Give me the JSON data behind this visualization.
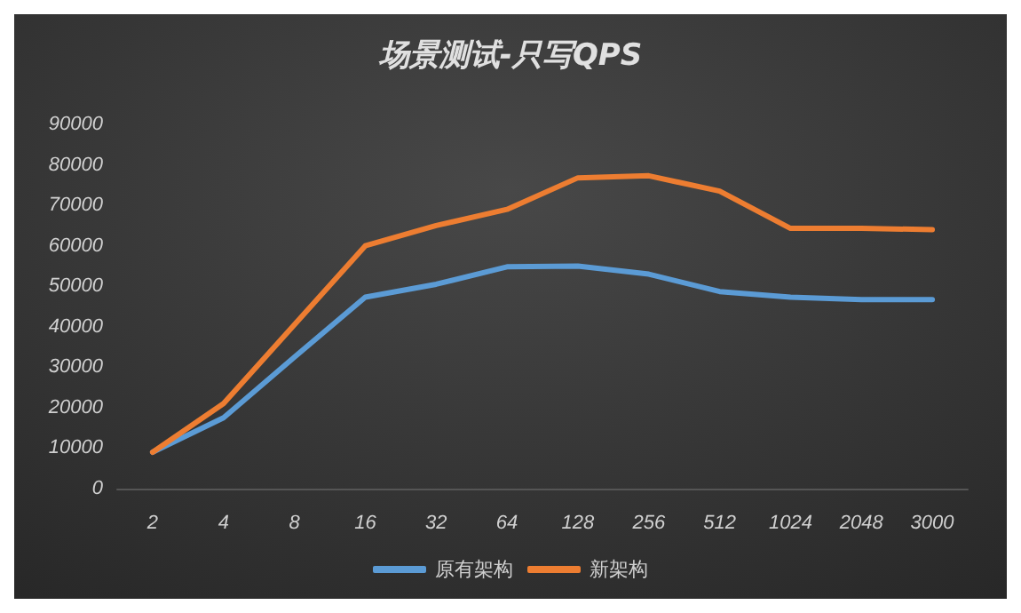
{
  "chart_data": {
    "type": "line",
    "title": "场景测试-只写QPS",
    "categories": [
      "2",
      "4",
      "8",
      "16",
      "32",
      "64",
      "128",
      "256",
      "512",
      "1024",
      "2048",
      "3000"
    ],
    "series": [
      {
        "name": "原有架构",
        "color": "#5b9bd5",
        "values": [
          9000,
          17500,
          32500,
          47300,
          50500,
          54800,
          55000,
          53000,
          48700,
          47300,
          46700,
          46700
        ]
      },
      {
        "name": "新架构",
        "color": "#ed7d31",
        "values": [
          9000,
          21000,
          40500,
          60000,
          65000,
          69000,
          76800,
          77300,
          73500,
          64300,
          64300,
          64000
        ]
      }
    ],
    "ylim": [
      0,
      90000
    ],
    "yticks": [
      0,
      10000,
      20000,
      30000,
      40000,
      50000,
      60000,
      70000,
      80000,
      90000
    ],
    "grid": false,
    "legend": "bottom",
    "marker": "none",
    "line_style": "solid"
  }
}
